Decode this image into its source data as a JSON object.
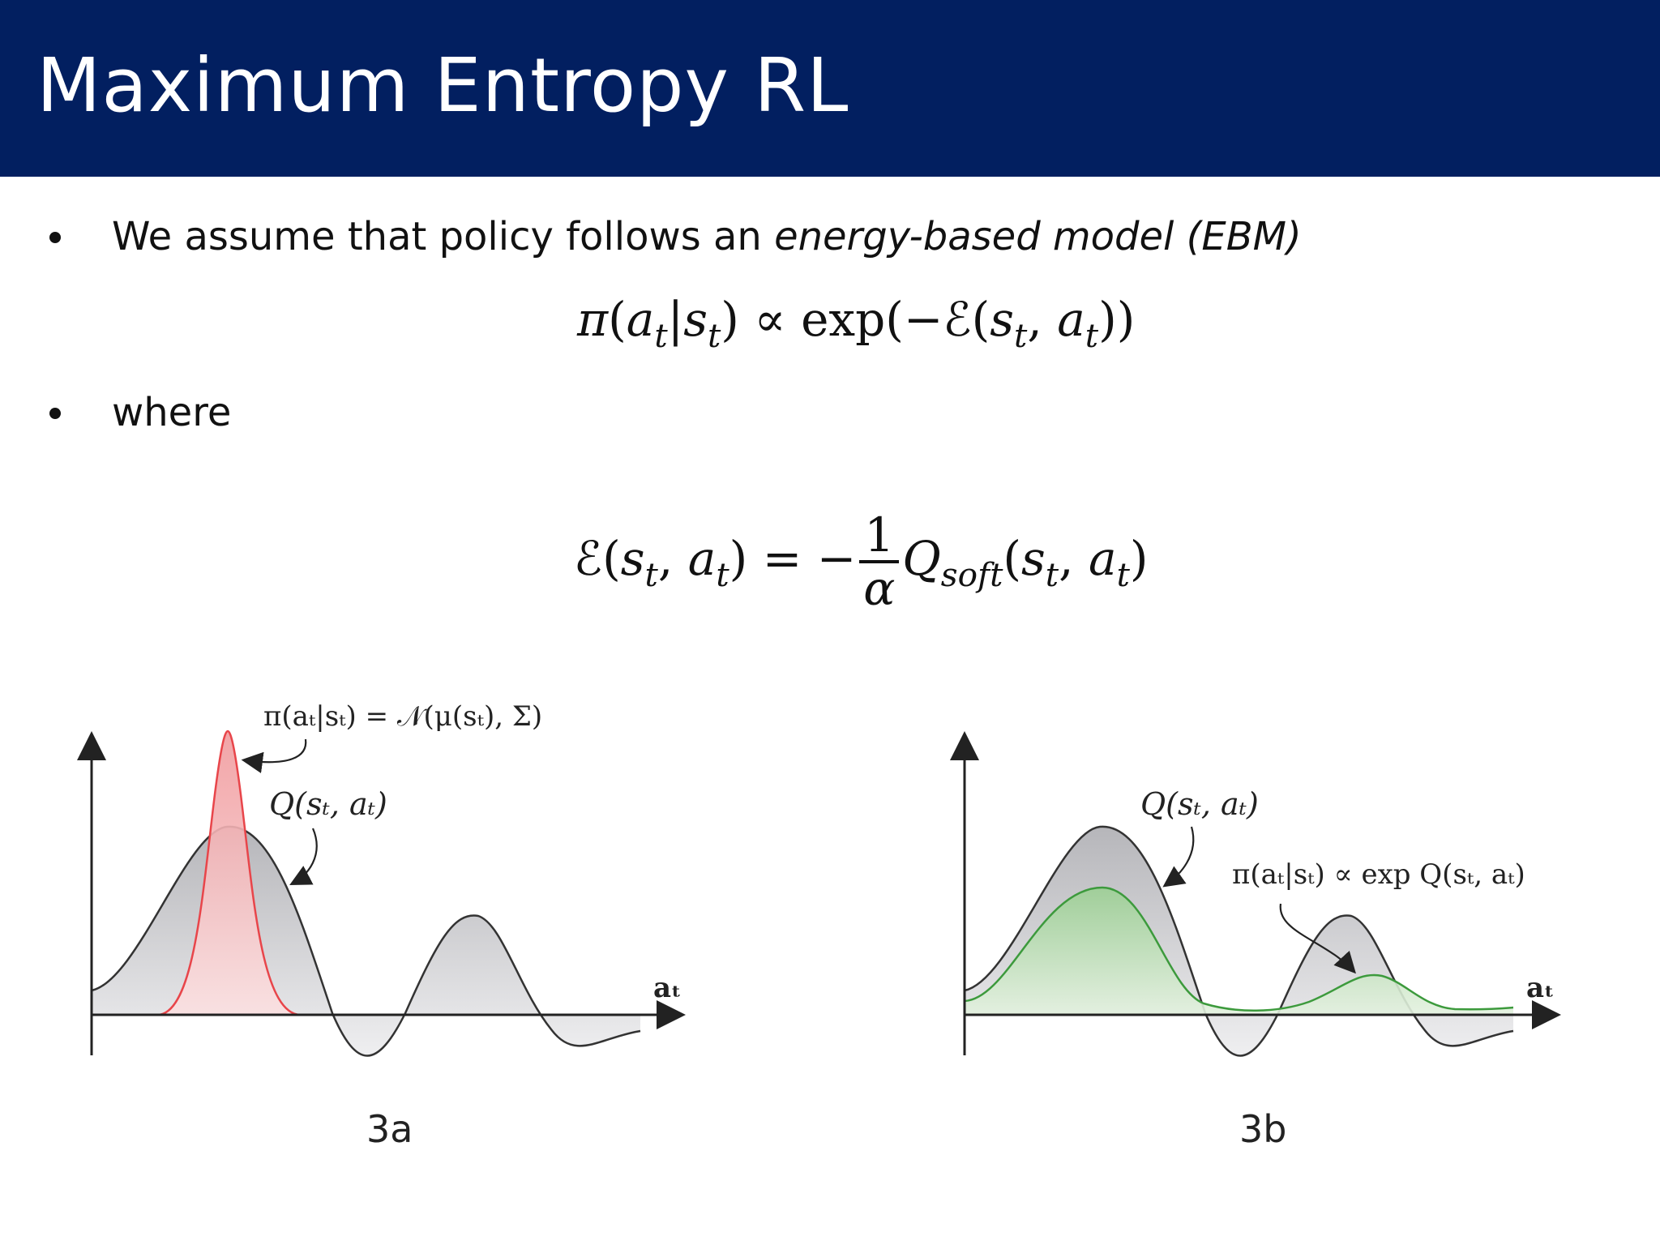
{
  "title": "Maximum Entropy RL",
  "bullets": [
    {
      "text_plain": "We assume that policy follows an ",
      "text_italic": "energy-based model (EBM)"
    },
    {
      "text_plain": "where",
      "text_italic": ""
    }
  ],
  "equations": {
    "eq1": {
      "pi": "π",
      "a": "a",
      "s": "s",
      "t": "t",
      "prop": "∝",
      "exp": "exp",
      "E": "ℰ"
    },
    "eq2": {
      "E": "ℰ",
      "s": "s",
      "a": "a",
      "t": "t",
      "num": "1",
      "den": "α",
      "Q": "Q",
      "soft": "soft"
    }
  },
  "figures": {
    "fig_a": {
      "caption": "3a",
      "label_policy": "π(aₜ|sₜ) = 𝒩(μ(sₜ), Σ)",
      "label_q": "Q(sₜ, aₜ)",
      "axis_label": "aₜ",
      "colors": {
        "q_fill": "#c8c8cc",
        "policy": "#e8454a",
        "policy_fill": "#f4b7b9",
        "axis": "#222222"
      }
    },
    "fig_b": {
      "caption": "3b",
      "label_q": "Q(sₜ, aₜ)",
      "label_policy": "π(aₜ|sₜ) ∝ exp Q(sₜ, aₜ)",
      "axis_label": "aₜ",
      "colors": {
        "q_fill": "#c8c8cc",
        "policy": "#3c9a3c",
        "policy_fill": "#b9dcb3",
        "axis": "#222222"
      }
    }
  }
}
